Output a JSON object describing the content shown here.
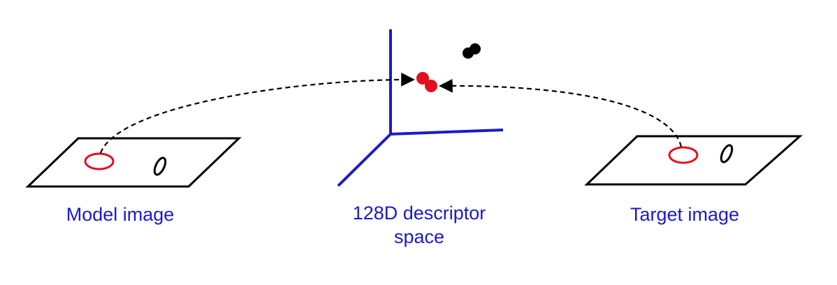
{
  "labels": {
    "model_image": "Model image",
    "descriptor_space_line1": "128D descriptor",
    "descriptor_space_line2": "space",
    "target_image": "Target image"
  },
  "colors": {
    "axis": "#1a1acc",
    "caption": "#1a1acc",
    "feature_match": "#e01020",
    "feature_other": "#000000",
    "outline": "#000000"
  }
}
